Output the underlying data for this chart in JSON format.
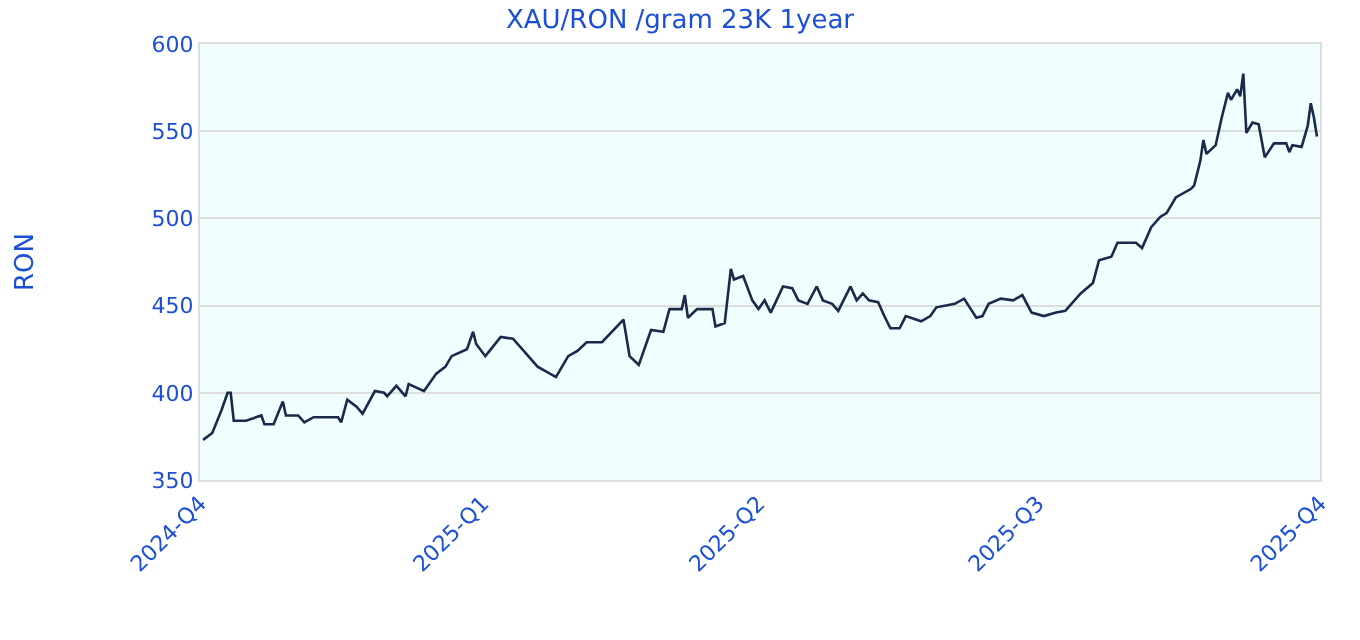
{
  "chart_data": {
    "type": "line",
    "title": "XAU/RON /gram 23K 1year",
    "ylabel": "RON",
    "x": [
      "2024-10-02",
      "2024-10-05",
      "2024-10-08",
      "2024-10-10",
      "2024-10-11",
      "2024-10-12",
      "2024-10-16",
      "2024-10-21",
      "2024-10-22",
      "2024-10-25",
      "2024-10-28",
      "2024-10-29",
      "2024-11-02",
      "2024-11-04",
      "2024-11-07",
      "2024-11-15",
      "2024-11-16",
      "2024-11-18",
      "2024-11-21",
      "2024-11-23",
      "2024-11-27",
      "2024-11-30",
      "2024-12-01",
      "2024-12-04",
      "2024-12-07",
      "2024-12-08",
      "2024-12-13",
      "2024-12-17",
      "2024-12-20",
      "2024-12-22",
      "2024-12-27",
      "2024-12-29",
      "2024-12-30",
      "2025-01-02",
      "2025-01-07",
      "2025-01-11",
      "2025-01-15",
      "2025-01-19",
      "2025-01-25",
      "2025-01-29",
      "2025-02-01",
      "2025-02-04",
      "2025-02-09",
      "2025-02-16",
      "2025-02-18",
      "2025-02-21",
      "2025-02-25",
      "2025-03-01",
      "2025-03-03",
      "2025-03-07",
      "2025-03-08",
      "2025-03-09",
      "2025-03-12",
      "2025-03-17",
      "2025-03-18",
      "2025-03-21",
      "2025-03-23",
      "2025-03-24",
      "2025-03-27",
      "2025-03-30",
      "2025-04-01",
      "2025-04-03",
      "2025-04-05",
      "2025-04-09",
      "2025-04-12",
      "2025-04-14",
      "2025-04-17",
      "2025-04-20",
      "2025-04-22",
      "2025-04-25",
      "2025-04-27",
      "2025-05-01",
      "2025-05-03",
      "2025-05-05",
      "2025-05-07",
      "2025-05-10",
      "2025-05-12",
      "2025-05-14",
      "2025-05-17",
      "2025-05-19",
      "2025-05-24",
      "2025-05-27",
      "2025-05-29",
      "2025-06-04",
      "2025-06-07",
      "2025-06-11",
      "2025-06-13",
      "2025-06-15",
      "2025-06-19",
      "2025-06-23",
      "2025-06-26",
      "2025-06-29",
      "2025-07-03",
      "2025-07-07",
      "2025-07-10",
      "2025-07-15",
      "2025-07-19",
      "2025-07-21",
      "2025-07-25",
      "2025-07-27",
      "2025-07-31",
      "2025-08-02",
      "2025-08-04",
      "2025-08-07",
      "2025-08-10",
      "2025-08-12",
      "2025-08-15",
      "2025-08-20",
      "2025-08-21",
      "2025-08-23",
      "2025-08-24",
      "2025-08-25",
      "2025-08-28",
      "2025-08-30",
      "2025-09-01",
      "2025-09-02",
      "2025-09-04",
      "2025-09-05",
      "2025-09-06",
      "2025-09-07",
      "2025-09-09",
      "2025-09-11",
      "2025-09-13",
      "2025-09-16",
      "2025-09-20",
      "2025-09-21",
      "2025-09-22",
      "2025-09-25",
      "2025-09-27",
      "2025-09-28",
      "2025-09-29",
      "2025-09-30"
    ],
    "series": [
      {
        "color": "#1a2a4a",
        "values": [
          373,
          377,
          390,
          400,
          400,
          384,
          384,
          387,
          382,
          382,
          395,
          387,
          387,
          383,
          386,
          386,
          383,
          396,
          392,
          388,
          401,
          400,
          398,
          404,
          398,
          405,
          401,
          411,
          415,
          421,
          425,
          435,
          428,
          421,
          432,
          431,
          423,
          415,
          409,
          421,
          424,
          429,
          429,
          442,
          421,
          416,
          436,
          435,
          448,
          448,
          456,
          443,
          448,
          448,
          438,
          440,
          471,
          465,
          467,
          453,
          448,
          453,
          446,
          461,
          460,
          453,
          451,
          461,
          453,
          451,
          447,
          461,
          453,
          457,
          453,
          452,
          444,
          437,
          437,
          444,
          441,
          444,
          449,
          451,
          454,
          443,
          444,
          451,
          454,
          453,
          456,
          446,
          444,
          446,
          447,
          457,
          463,
          476,
          478,
          486,
          486,
          486,
          483,
          495,
          501,
          503,
          512,
          517,
          519,
          533,
          545,
          537,
          542,
          558,
          572,
          568,
          574,
          570,
          583,
          549,
          555,
          554,
          535,
          543,
          543,
          538,
          542,
          541,
          553,
          566,
          558,
          547
        ]
      }
    ],
    "xlim": [
      "2024-10-01",
      "2025-10-01"
    ],
    "xticks": [
      {
        "value": "2024-10-01",
        "label": "2024-Q4"
      },
      {
        "value": "2025-01-01",
        "label": "2025-Q1"
      },
      {
        "value": "2025-04-01",
        "label": "2025-Q2"
      },
      {
        "value": "2025-07-01",
        "label": "2025-Q3"
      },
      {
        "value": "2025-10-01",
        "label": "2025-Q4"
      }
    ],
    "ylim": [
      350,
      600
    ],
    "yticks": [
      350,
      400,
      450,
      500,
      550,
      600
    ],
    "grid": "y",
    "marker": "none",
    "line_style": "solid"
  }
}
